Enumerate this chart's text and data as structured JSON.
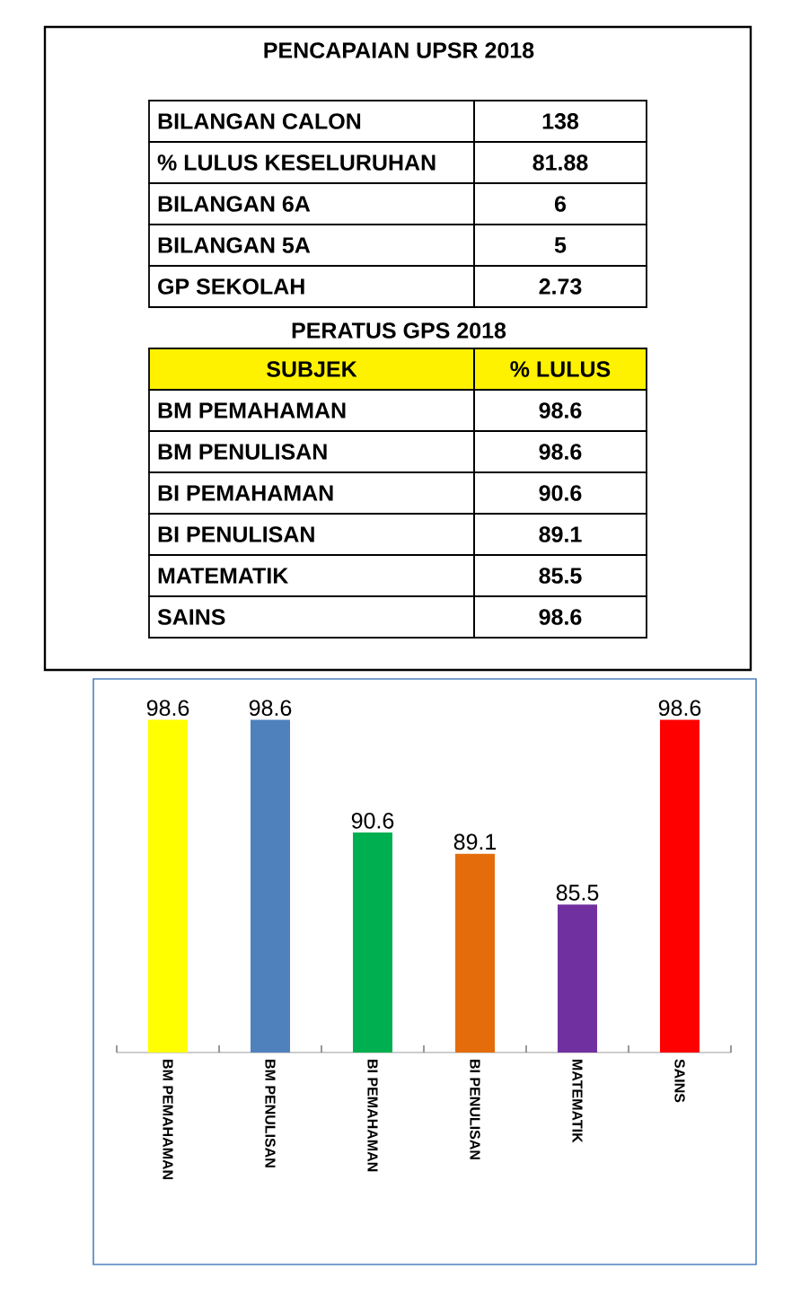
{
  "chart_data": [
    {
      "type": "other",
      "title": "PENCAPAIAN UPSR 2018",
      "subtitle": "PERATUS GPS 2018",
      "annotations": [
        "BILANGAN CALON",
        "138",
        "% LULUS KESELURUHAN",
        "81.88",
        "BILANGAN 6A",
        "6",
        "BILANGAN 5A",
        "5",
        "GP SEKOLAH",
        "2.73",
        "SUBJEK",
        "% LULUS",
        "BM PEMAHAMAN",
        "98.6",
        "BM PENULISAN",
        "98.6",
        "BI PEMAHAMAN",
        "90.6",
        "BI PENULISAN",
        "89.1",
        "MATEMATIK",
        "85.5",
        "SAINS",
        "98.6"
      ]
    },
    {
      "type": "bar",
      "categories": [
        "BM PEMAHAMAN",
        "BM PENULISAN",
        "BI PEMAHAMAN",
        "BI PENULISAN",
        "MATEMATIK",
        "SAINS"
      ],
      "values": [
        98.6,
        98.6,
        90.6,
        89.1,
        85.5,
        98.6
      ],
      "colors": [
        "#ffff00",
        "#4f81bd",
        "#00b050",
        "#e46c0a",
        "#7030a0",
        "#ff0000"
      ],
      "ylim": [
        75,
        101.5
      ],
      "data_labels": true,
      "tick_labels": "x"
    }
  ]
}
